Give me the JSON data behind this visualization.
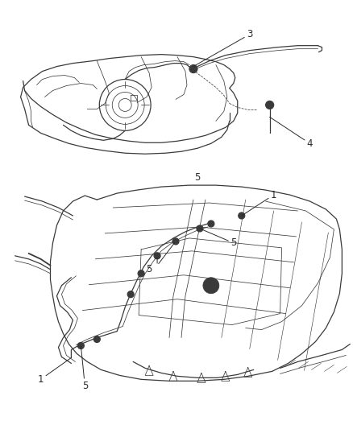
{
  "background_color": "#ffffff",
  "line_color": "#3a3a3a",
  "label_color": "#2a2a2a",
  "fig_width": 4.38,
  "fig_height": 5.33,
  "dpi": 100,
  "label_fontsize": 8.5,
  "lw_main": 0.9,
  "lw_thin": 0.55,
  "lw_thick": 1.3,
  "top_section": {
    "ymin": 0.52,
    "ymax": 1.0
  },
  "bottom_section": {
    "ymin": 0.0,
    "ymax": 0.52
  }
}
